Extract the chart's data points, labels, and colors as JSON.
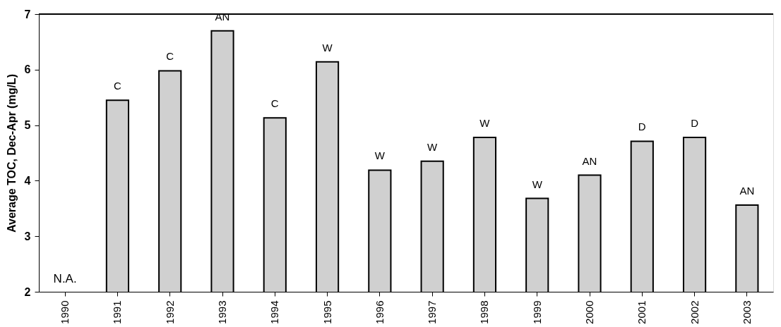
{
  "chart_data": {
    "type": "bar",
    "ylabel": "Average TOC, Dec-Apr (mg/L)",
    "categories": [
      "1990",
      "1991",
      "1992",
      "1993",
      "1994",
      "1995",
      "1996",
      "1997",
      "1998",
      "1999",
      "2000",
      "2001",
      "2002",
      "2003"
    ],
    "values": [
      null,
      5.45,
      5.98,
      6.7,
      5.13,
      6.14,
      4.19,
      4.35,
      4.78,
      3.68,
      4.1,
      4.71,
      4.78,
      3.56
    ],
    "color": "#d0d0d0",
    "ylim": [
      2,
      7
    ],
    "yticks": [
      2,
      3,
      4,
      5,
      6,
      7
    ],
    "grid": false,
    "annotations": [
      "N.A.",
      {
        "text": "C",
        "x": "1991",
        "y": 5.45
      },
      {
        "text": "C",
        "x": "1992",
        "y": 5.98
      },
      {
        "text": "AN",
        "x": "1993",
        "y": 6.7
      },
      {
        "text": "C",
        "x": "1994",
        "y": 5.13
      },
      {
        "text": "W",
        "x": "1995",
        "y": 6.14
      },
      {
        "text": "W",
        "x": "1996",
        "y": 4.19
      },
      {
        "text": "W",
        "x": "1997",
        "y": 4.35
      },
      {
        "text": "W",
        "x": "1998",
        "y": 4.78
      },
      {
        "text": "W",
        "x": "1999",
        "y": 3.68
      },
      {
        "text": "AN",
        "x": "2000",
        "y": 4.1
      },
      {
        "text": "D",
        "x": "2001",
        "y": 4.71
      },
      {
        "text": "D",
        "x": "2002",
        "y": 4.78
      },
      {
        "text": "AN",
        "x": "2003",
        "y": 3.56
      }
    ]
  }
}
